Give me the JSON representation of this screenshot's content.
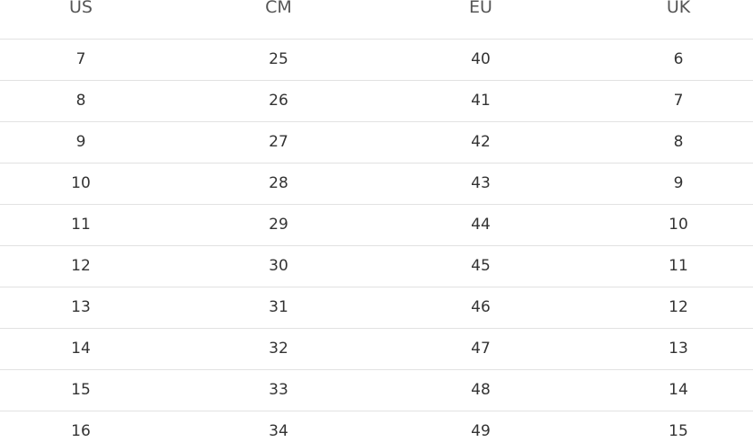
{
  "table": {
    "header": [
      "US",
      "CM",
      "EU",
      "UK"
    ],
    "rows": [
      [
        7,
        25,
        40,
        6
      ],
      [
        8,
        26,
        41,
        7
      ],
      [
        9,
        27,
        42,
        8
      ],
      [
        10,
        28,
        43,
        9
      ],
      [
        11,
        29,
        44,
        10
      ],
      [
        12,
        30,
        45,
        11
      ],
      [
        13,
        31,
        46,
        12
      ],
      [
        14,
        32,
        47,
        13
      ],
      [
        15,
        33,
        48,
        14
      ],
      [
        16,
        34,
        49,
        15
      ]
    ]
  }
}
